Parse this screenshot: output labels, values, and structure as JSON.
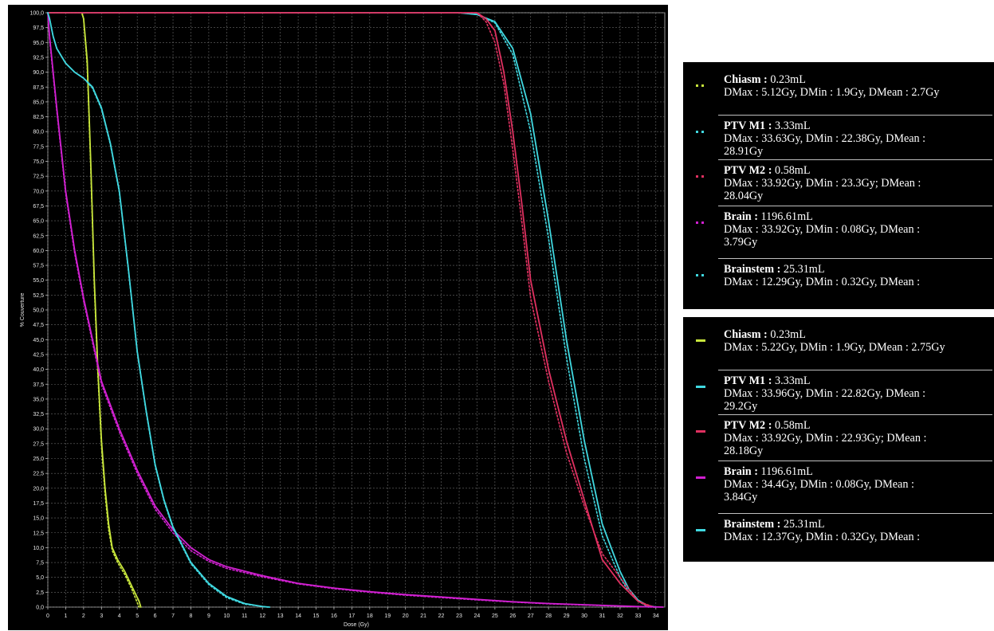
{
  "chart_data": {
    "type": "line",
    "xlabel": "Dose (Gy)",
    "ylabel": "% Couverture",
    "xlim": [
      0,
      34.5
    ],
    "ylim": [
      0,
      100
    ],
    "x_ticks": [
      "0",
      "1",
      "2",
      "3",
      "4",
      "5",
      "6",
      "7",
      "8",
      "9",
      "10",
      "11",
      "12",
      "13",
      "14",
      "15",
      "16",
      "17",
      "18",
      "19",
      "20",
      "21",
      "22",
      "23",
      "24",
      "25",
      "26",
      "27",
      "28",
      "29",
      "30",
      "31",
      "32",
      "33",
      "34"
    ],
    "y_ticks": [
      "0,0",
      "2,5",
      "5,0",
      "7,5",
      "10,0",
      "12,5",
      "15,0",
      "17,5",
      "20,0",
      "22,5",
      "25,0",
      "27,5",
      "30,0",
      "32,5",
      "35,0",
      "37,5",
      "40,0",
      "42,5",
      "45,0",
      "47,5",
      "50,0",
      "52,5",
      "55,0",
      "57,5",
      "60,0",
      "62,5",
      "65,0",
      "67,5",
      "70,0",
      "72,5",
      "75,0",
      "77,5",
      "80,0",
      "82,5",
      "85,0",
      "87,5",
      "90,0",
      "92,5",
      "95,0",
      "97,5",
      "100,0"
    ],
    "grid": true,
    "series": [
      {
        "name": "Chiasm",
        "color": "#c8e63c",
        "style": "solid",
        "x": [
          0,
          1.9,
          2.0,
          2.2,
          2.4,
          2.6,
          2.8,
          3.0,
          3.2,
          3.4,
          3.6,
          3.9,
          4.3,
          4.7,
          5.1,
          5.2
        ],
        "y": [
          100,
          100,
          99,
          92,
          75,
          55,
          40,
          28,
          20,
          14,
          10,
          8,
          6,
          3.5,
          1,
          0
        ]
      },
      {
        "name": "Chiasm",
        "color": "#c8e63c",
        "style": "dotted",
        "x": [
          0,
          1.9,
          2.0,
          2.2,
          2.4,
          2.6,
          2.8,
          3.0,
          3.2,
          3.4,
          3.6,
          3.9,
          4.3,
          4.7,
          5.1
        ],
        "y": [
          100,
          100,
          99,
          91,
          74,
          54,
          39,
          27,
          19,
          13,
          9.5,
          7.5,
          5.5,
          3,
          0
        ]
      },
      {
        "name": "PTV M1",
        "color": "#40d8e0",
        "style": "solid",
        "x": [
          0,
          23,
          24,
          25,
          26,
          27,
          28,
          29,
          30,
          31,
          32,
          32.5,
          33,
          33.5,
          34
        ],
        "y": [
          100,
          100,
          99.7,
          98.5,
          94,
          83,
          65,
          45,
          28,
          14,
          6,
          3,
          1.2,
          0.3,
          0
        ]
      },
      {
        "name": "PTV M1",
        "color": "#40d8e0",
        "style": "dotted",
        "x": [
          0,
          23,
          24,
          25,
          26,
          27,
          28,
          29,
          30,
          31,
          32,
          32.5,
          33,
          33.6
        ],
        "y": [
          100,
          100,
          99.7,
          98.3,
          93,
          80,
          62,
          42,
          25,
          12,
          5,
          2.5,
          1,
          0
        ]
      },
      {
        "name": "PTV M2",
        "color": "#e03060",
        "style": "solid",
        "x": [
          0,
          24,
          24.5,
          25,
          25.5,
          26,
          26.5,
          27,
          28,
          29,
          30,
          31,
          31.5,
          32,
          32.5,
          33,
          33.5,
          33.9
        ],
        "y": [
          100,
          100,
          99,
          97,
          90,
          80,
          68,
          55,
          40,
          28,
          18,
          8,
          6,
          4,
          2.5,
          1,
          0.3,
          0
        ]
      },
      {
        "name": "PTV M2",
        "color": "#e03060",
        "style": "dotted",
        "x": [
          0,
          24,
          24.5,
          25,
          25.5,
          26,
          26.5,
          27,
          28,
          29,
          30,
          31,
          32,
          33,
          33.9
        ],
        "y": [
          100,
          100,
          98.5,
          95,
          88,
          77,
          65,
          52,
          38,
          26,
          17,
          9,
          5,
          1,
          0
        ]
      },
      {
        "name": "Brain",
        "color": "#d020d0",
        "style": "solid",
        "x": [
          0,
          0.1,
          0.5,
          1,
          1.5,
          2,
          2.5,
          3,
          4,
          5,
          6,
          7,
          8,
          9,
          10,
          12,
          14,
          16,
          18,
          20,
          22,
          24,
          26,
          28,
          30,
          32,
          33,
          34.4
        ],
        "y": [
          100,
          96,
          84,
          70,
          60,
          52,
          45,
          38,
          30,
          23,
          17,
          13,
          10,
          8,
          6.8,
          5.3,
          4,
          3.2,
          2.6,
          2.1,
          1.7,
          1.3,
          0.9,
          0.6,
          0.4,
          0.2,
          0.1,
          0
        ]
      },
      {
        "name": "Brain",
        "color": "#d020d0",
        "style": "dotted",
        "x": [
          0,
          0.1,
          0.5,
          1,
          1.5,
          2,
          2.5,
          3,
          4,
          5,
          6,
          7,
          8,
          9,
          10,
          12,
          14,
          16,
          18,
          20,
          22,
          24,
          26,
          28,
          30,
          32,
          33.9
        ],
        "y": [
          100,
          95.5,
          83.5,
          69.5,
          59.5,
          51.5,
          44.5,
          37.5,
          29.5,
          22.5,
          16.5,
          12.5,
          9.5,
          7.7,
          6.5,
          5.1,
          3.9,
          3.1,
          2.5,
          2.0,
          1.6,
          1.2,
          0.85,
          0.55,
          0.35,
          0.15,
          0
        ]
      },
      {
        "name": "Brainstem",
        "color": "#40d8e0",
        "style": "solid",
        "x": [
          0,
          0.1,
          0.3,
          0.5,
          1,
          1.5,
          2,
          2.5,
          3,
          3.5,
          4,
          4.5,
          5,
          5.5,
          6,
          6.5,
          7,
          8,
          9,
          10,
          11,
          12,
          12.4
        ],
        "y": [
          100,
          99,
          96,
          94,
          91.5,
          90,
          89,
          87.5,
          84,
          78,
          70,
          57,
          43,
          33,
          24,
          18,
          13.5,
          7.5,
          4,
          1.8,
          0.6,
          0.1,
          0
        ]
      },
      {
        "name": "Brainstem",
        "color": "#40d8e0",
        "style": "dotted",
        "x": [
          0,
          0.1,
          0.3,
          0.5,
          1,
          1.5,
          2,
          2.5,
          3,
          3.5,
          4,
          4.5,
          5,
          5.5,
          6,
          6.5,
          7,
          8,
          9,
          10,
          11,
          12.3
        ],
        "y": [
          100,
          99,
          96,
          94,
          91.5,
          90,
          89,
          87.3,
          83.8,
          77.8,
          69.8,
          56.8,
          42.8,
          32.8,
          23.8,
          17.8,
          13.3,
          7.3,
          3.8,
          1.6,
          0.5,
          0
        ]
      }
    ]
  },
  "legend_top": {
    "style": "dotted",
    "entries": [
      {
        "name": "Chiasm",
        "sep": " : ",
        "volume": "0.23mL",
        "color": "#c8e63c",
        "lines": [
          "DMax : 5.12Gy, DMin : 1.9Gy, DMean : 2.7Gy"
        ]
      },
      {
        "name": "PTV M1",
        "sep": " : ",
        "volume": "3.33mL",
        "color": "#40d8e0",
        "lines": [
          "DMax : 33.63Gy, DMin : 22.38Gy, DMean :",
          "28.91Gy"
        ]
      },
      {
        "name": "PTV M2",
        "sep": " : ",
        "volume": "0.58mL",
        "color": "#e03060",
        "lines": [
          "DMax : 33.92Gy, DMin : 23.3Gy; DMean :",
          "28.04Gy"
        ]
      },
      {
        "name": "Brain",
        "sep": " : ",
        "volume": "1196.61mL",
        "color": "#d020d0",
        "lines": [
          "DMax : 33.92Gy, DMin : 0.08Gy, DMean :",
          "3.79Gy"
        ]
      },
      {
        "name": "Brainstem",
        "sep": " : ",
        "volume": "25.31mL",
        "color": "#40d8e0",
        "lines": [
          "DMax : 12.29Gy, DMin : 0.32Gy, DMean :"
        ]
      }
    ]
  },
  "legend_bottom": {
    "style": "solid",
    "entries": [
      {
        "name": "Chiasm",
        "sep": " : ",
        "volume": "0.23mL",
        "color": "#c8e63c",
        "lines": [
          "DMax : 5.22Gy, DMin : 1.9Gy, DMean : 2.75Gy"
        ]
      },
      {
        "name": "PTV M1",
        "sep": " : ",
        "volume": "3.33mL",
        "color": "#40d8e0",
        "lines": [
          "DMax : 33.96Gy, DMin : 22.82Gy, DMean :",
          "29.2Gy"
        ]
      },
      {
        "name": "PTV M2",
        "sep": " : ",
        "volume": "0.58mL",
        "color": "#e03060",
        "lines": [
          "DMax : 33.92Gy, DMin : 22.93Gy; DMean :",
          "28.18Gy"
        ]
      },
      {
        "name": "Brain",
        "sep": " : ",
        "volume": "1196.61mL",
        "color": "#d020d0",
        "lines": [
          "DMax : 34.4Gy, DMin : 0.08Gy, DMean :",
          "3.84Gy"
        ]
      },
      {
        "name": "Brainstem",
        "sep": " : ",
        "volume": "25.31mL",
        "color": "#40d8e0",
        "lines": [
          "DMax : 12.37Gy, DMin : 0.32Gy, DMean :"
        ]
      }
    ]
  }
}
